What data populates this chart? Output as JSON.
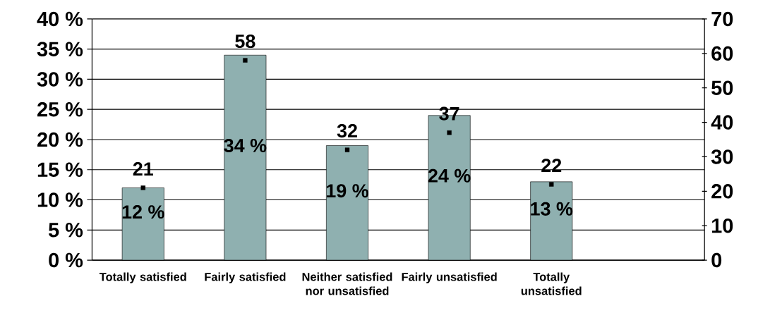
{
  "chart_data": {
    "type": "bar",
    "categories": [
      "Totally satisfied",
      "Fairly satisfied",
      "Neither satisfied nor unsatisfied",
      "Fairly unsatisfied",
      "Totally unsatisfied",
      null
    ],
    "series": [
      {
        "color": "#8fb0b0",
        "values": [
          12,
          34,
          19,
          24,
          13,
          null
        ],
        "value_labels": [
          "12 %",
          "34 %",
          "19 %",
          "24 %",
          "13 %",
          null
        ]
      },
      {
        "type": "scatter",
        "axis": "y2",
        "color": "#000000",
        "values": [
          21,
          58,
          32,
          37,
          22,
          null
        ],
        "value_labels": [
          "21",
          "58",
          "32",
          "37",
          "22",
          null
        ]
      }
    ],
    "ylim": [
      0,
      40
    ],
    "yticks": [
      {
        "value": 0,
        "label": "0 %"
      },
      {
        "value": 5,
        "label": "5 %"
      },
      {
        "value": 10,
        "label": "10 %"
      },
      {
        "value": 15,
        "label": "15 %"
      },
      {
        "value": 20,
        "label": "20 %"
      },
      {
        "value": 25,
        "label": "25 %"
      },
      {
        "value": 30,
        "label": "30 %"
      },
      {
        "value": 35,
        "label": "35 %"
      },
      {
        "value": 40,
        "label": "40 %"
      }
    ],
    "y2lim": [
      0,
      70
    ],
    "y2ticks": [
      0,
      10,
      20,
      30,
      40,
      50,
      60,
      70
    ],
    "marker": "square",
    "grid": "y"
  }
}
